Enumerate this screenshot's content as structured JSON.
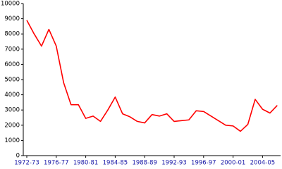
{
  "chart_data": {
    "type": "line",
    "categories": [
      "1972-73",
      null,
      null,
      null,
      "1976-77",
      null,
      null,
      null,
      "1980-81",
      null,
      null,
      null,
      "1984-85",
      null,
      null,
      null,
      "1988-89",
      null,
      null,
      null,
      "1992-93",
      null,
      null,
      null,
      "1996-97",
      null,
      null,
      null,
      "2000-01",
      null,
      null,
      null,
      "2004-05",
      null,
      null
    ],
    "series": [
      {
        "color": "#ff0000",
        "values": [
          8900,
          8000,
          7200,
          8300,
          7200,
          4800,
          3350,
          3350,
          2450,
          2600,
          2250,
          3000,
          3850,
          2750,
          2550,
          2250,
          2150,
          2700,
          2600,
          2750,
          2250,
          2300,
          2350,
          2950,
          2900,
          2600,
          2300,
          2000,
          1950,
          1600,
          2050,
          3700,
          3050,
          2800,
          3300
        ]
      }
    ],
    "ylim": [
      0,
      10000
    ],
    "yticks": [
      0,
      1000,
      2000,
      3000,
      4000,
      5000,
      6000,
      7000,
      8000,
      9000,
      10000
    ],
    "grid": false
  }
}
